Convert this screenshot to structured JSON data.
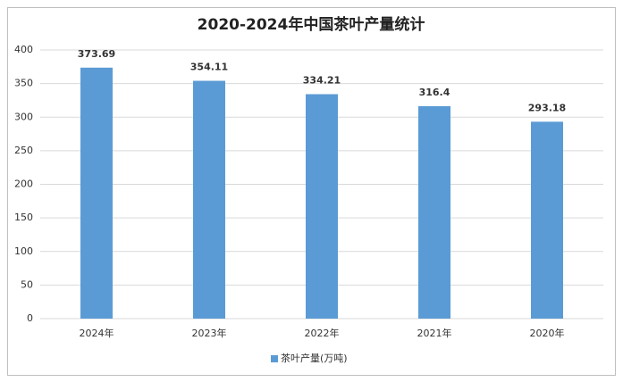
{
  "chart_data": {
    "type": "bar",
    "title": "2020-2024年中国茶叶产量统计",
    "categories": [
      "2024年",
      "2023年",
      "2022年",
      "2021年",
      "2020年"
    ],
    "series": [
      {
        "name": "茶叶产量(万吨)",
        "color": "#5b9bd5",
        "values": [
          373.69,
          354.11,
          334.21,
          316.4,
          293.18
        ]
      }
    ],
    "ylim": [
      0,
      400
    ],
    "yticks": [
      0,
      50,
      100,
      150,
      200,
      250,
      300,
      350,
      400
    ],
    "grid": true,
    "legend": "bottom"
  }
}
